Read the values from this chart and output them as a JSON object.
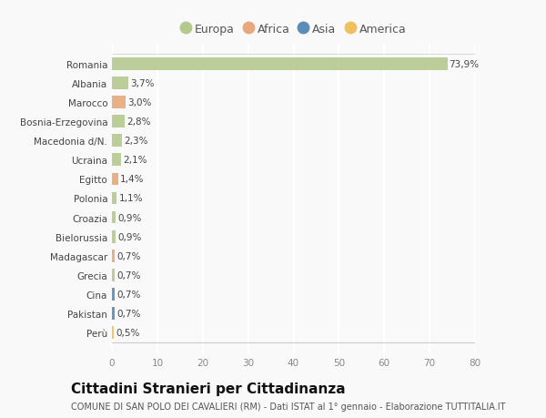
{
  "categories": [
    "Romania",
    "Albania",
    "Marocco",
    "Bosnia-Erzegovina",
    "Macedonia d/N.",
    "Ucraina",
    "Egitto",
    "Polonia",
    "Croazia",
    "Bielorussia",
    "Madagascar",
    "Grecia",
    "Cina",
    "Pakistan",
    "Perù"
  ],
  "values": [
    73.9,
    3.7,
    3.0,
    2.8,
    2.3,
    2.1,
    1.4,
    1.1,
    0.9,
    0.9,
    0.7,
    0.7,
    0.7,
    0.7,
    0.5
  ],
  "labels": [
    "73,9%",
    "3,7%",
    "3,0%",
    "2,8%",
    "2,3%",
    "2,1%",
    "1,4%",
    "1,1%",
    "0,9%",
    "0,9%",
    "0,7%",
    "0,7%",
    "0,7%",
    "0,7%",
    "0,5%"
  ],
  "colors": [
    "#b5c98e",
    "#b5c98e",
    "#e8a87c",
    "#b5c98e",
    "#b5c98e",
    "#b5c98e",
    "#e8a87c",
    "#b5c98e",
    "#b5c98e",
    "#b5c98e",
    "#e8a87c",
    "#b5c98e",
    "#5b8db8",
    "#5b8db8",
    "#f0c060"
  ],
  "legend": [
    {
      "label": "Europa",
      "color": "#b5c98e"
    },
    {
      "label": "Africa",
      "color": "#e8a87c"
    },
    {
      "label": "Asia",
      "color": "#5b8db8"
    },
    {
      "label": "America",
      "color": "#f0c060"
    }
  ],
  "xlim": [
    0,
    80
  ],
  "xticks": [
    0,
    10,
    20,
    30,
    40,
    50,
    60,
    70,
    80
  ],
  "title": "Cittadini Stranieri per Cittadinanza",
  "subtitle": "COMUNE DI SAN POLO DEI CAVALIERI (RM) - Dati ISTAT al 1° gennaio - Elaborazione TUTTITALIA.IT",
  "background_color": "#f9f9f9",
  "grid_color": "#ffffff",
  "bar_height": 0.65,
  "label_fontsize": 7.5,
  "tick_fontsize": 7.5,
  "title_fontsize": 11,
  "subtitle_fontsize": 7,
  "legend_fontsize": 9
}
